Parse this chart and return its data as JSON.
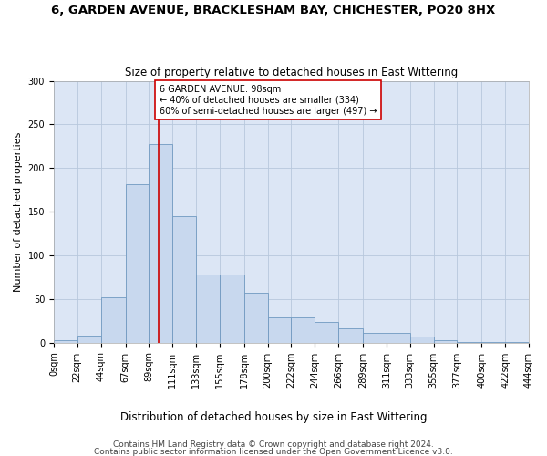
{
  "title": "6, GARDEN AVENUE, BRACKLESHAM BAY, CHICHESTER, PO20 8HX",
  "subtitle": "Size of property relative to detached houses in East Wittering",
  "xlabel": "Distribution of detached houses by size in East Wittering",
  "ylabel": "Number of detached properties",
  "footnote1": "Contains HM Land Registry data © Crown copyright and database right 2024.",
  "footnote2": "Contains public sector information licensed under the Open Government Licence v3.0.",
  "bar_color": "#c8d8ee",
  "bar_edge_color": "#7099c0",
  "grid_color": "#b8c8dc",
  "background_color": "#dce6f5",
  "fig_background": "#ffffff",
  "property_line_color": "#cc0000",
  "property_line_x": 98,
  "annotation_text": "6 GARDEN AVENUE: 98sqm\n← 40% of detached houses are smaller (334)\n60% of semi-detached houses are larger (497) →",
  "annotation_box_color": "#ffffff",
  "annotation_box_edge_color": "#cc0000",
  "bin_edges": [
    0,
    22,
    44,
    67,
    89,
    111,
    133,
    155,
    178,
    200,
    222,
    244,
    266,
    289,
    311,
    333,
    355,
    377,
    400,
    422,
    444
  ],
  "bar_heights": [
    3,
    8,
    52,
    182,
    227,
    145,
    78,
    78,
    57,
    29,
    29,
    24,
    17,
    11,
    11,
    7,
    3,
    1,
    1,
    1
  ],
  "ylim": [
    0,
    300
  ],
  "yticks": [
    0,
    50,
    100,
    150,
    200,
    250,
    300
  ],
  "title_fontsize": 9.5,
  "subtitle_fontsize": 8.5,
  "xlabel_fontsize": 8.5,
  "ylabel_fontsize": 8,
  "footnote_fontsize": 6.5,
  "tick_label_fontsize": 7
}
